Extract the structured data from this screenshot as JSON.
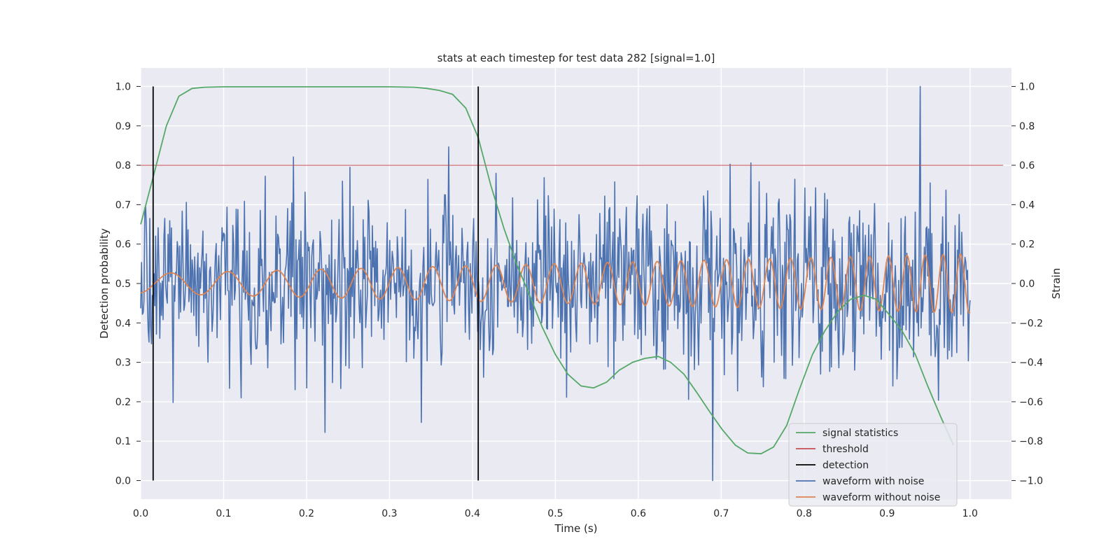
{
  "chart_data": {
    "type": "line",
    "title": "stats at each timestep for test data 282 [signal=1.0]",
    "xlabel": "Time (s)",
    "ylabel": "Detection probability",
    "y2label": "Strain",
    "xlim": [
      0.0,
      1.05
    ],
    "ylim": [
      -0.047,
      1.047
    ],
    "y2lim": [
      -1.094,
      1.094
    ],
    "xticks": [
      0.0,
      0.1,
      0.2,
      0.3,
      0.4,
      0.5,
      0.6,
      0.7,
      0.8,
      0.9,
      1.0
    ],
    "xtick_labels": [
      "0.0",
      "0.1",
      "0.2",
      "0.3",
      "0.4",
      "0.5",
      "0.6",
      "0.7",
      "0.8",
      "0.9",
      "1.0"
    ],
    "yticks": [
      0.0,
      0.1,
      0.2,
      0.3,
      0.4,
      0.5,
      0.6,
      0.7,
      0.8,
      0.9,
      1.0
    ],
    "ytick_labels": [
      "0.0",
      "0.1",
      "0.2",
      "0.3",
      "0.4",
      "0.5",
      "0.6",
      "0.7",
      "0.8",
      "0.9",
      "1.0"
    ],
    "y2ticks": [
      -1.0,
      -0.8,
      -0.6,
      -0.4,
      -0.2,
      0.0,
      0.2,
      0.4,
      0.6,
      0.8,
      1.0
    ],
    "y2tick_labels": [
      "−1.0",
      "−0.8",
      "−0.6",
      "−0.4",
      "−0.2",
      "0.0",
      "0.2",
      "0.4",
      "0.6",
      "0.8",
      "1.0"
    ],
    "grid": true,
    "legend_position": "lower-right",
    "colors": {
      "background": "#eaeaf2",
      "grid": "#ffffff",
      "signal_statistics": "#55a868",
      "threshold": "#c44e52",
      "detection": "#000000",
      "waveform_with_noise": "#4c72b0",
      "waveform_without_noise": "#dd8452"
    },
    "legend": [
      "signal statistics",
      "threshold",
      "detection",
      "waveform with noise",
      "waveform without noise"
    ],
    "threshold": 0.8,
    "threshold_x_range": [
      0.0,
      1.04
    ],
    "detections": [
      0.015,
      0.407
    ],
    "detection_y_range": [
      0.0,
      1.0
    ],
    "series": [
      {
        "name": "signal statistics",
        "axis": "left",
        "x": [
          0.0,
          0.015,
          0.031,
          0.046,
          0.062,
          0.077,
          0.1,
          0.2,
          0.3,
          0.33,
          0.345,
          0.36,
          0.376,
          0.392,
          0.407,
          0.422,
          0.438,
          0.453,
          0.469,
          0.484,
          0.5,
          0.515,
          0.531,
          0.546,
          0.562,
          0.577,
          0.593,
          0.608,
          0.624,
          0.639,
          0.655,
          0.67,
          0.686,
          0.701,
          0.717,
          0.732,
          0.748,
          0.763,
          0.779,
          0.794,
          0.81,
          0.825,
          0.841,
          0.856,
          0.872,
          0.887,
          0.903,
          0.918,
          0.934,
          0.949,
          0.965,
          0.98
        ],
        "y": [
          0.65,
          0.77,
          0.9,
          0.975,
          0.995,
          0.998,
          0.999,
          0.999,
          0.999,
          0.998,
          0.995,
          0.99,
          0.98,
          0.945,
          0.87,
          0.75,
          0.64,
          0.55,
          0.47,
          0.39,
          0.32,
          0.27,
          0.24,
          0.235,
          0.25,
          0.28,
          0.3,
          0.31,
          0.315,
          0.3,
          0.27,
          0.225,
          0.175,
          0.13,
          0.09,
          0.07,
          0.068,
          0.085,
          0.14,
          0.23,
          0.32,
          0.38,
          0.43,
          0.46,
          0.47,
          0.46,
          0.42,
          0.38,
          0.32,
          0.24,
          0.16,
          0.09
        ]
      },
      {
        "name": "waveform with noise",
        "axis": "right",
        "note": "noisy strain, ~1000 samples; reproduced procedurally by the drawing script with key extrema",
        "x_range": [
          0.0,
          1.0
        ],
        "samples": 1000,
        "max": {
          "x": 0.94,
          "y": 1.0
        },
        "min": {
          "x": 0.69,
          "y": -1.0
        }
      },
      {
        "name": "waveform without noise",
        "axis": "right",
        "note": "chirp: frequency ~12 Hz at t=0 rising to ~48 Hz at t=1; amplitude ~0.05 rising to ~0.15",
        "x_range": [
          0.0,
          1.0
        ],
        "f_start": 12,
        "f_end": 48,
        "amp_start": 0.05,
        "amp_end": 0.15
      }
    ]
  }
}
